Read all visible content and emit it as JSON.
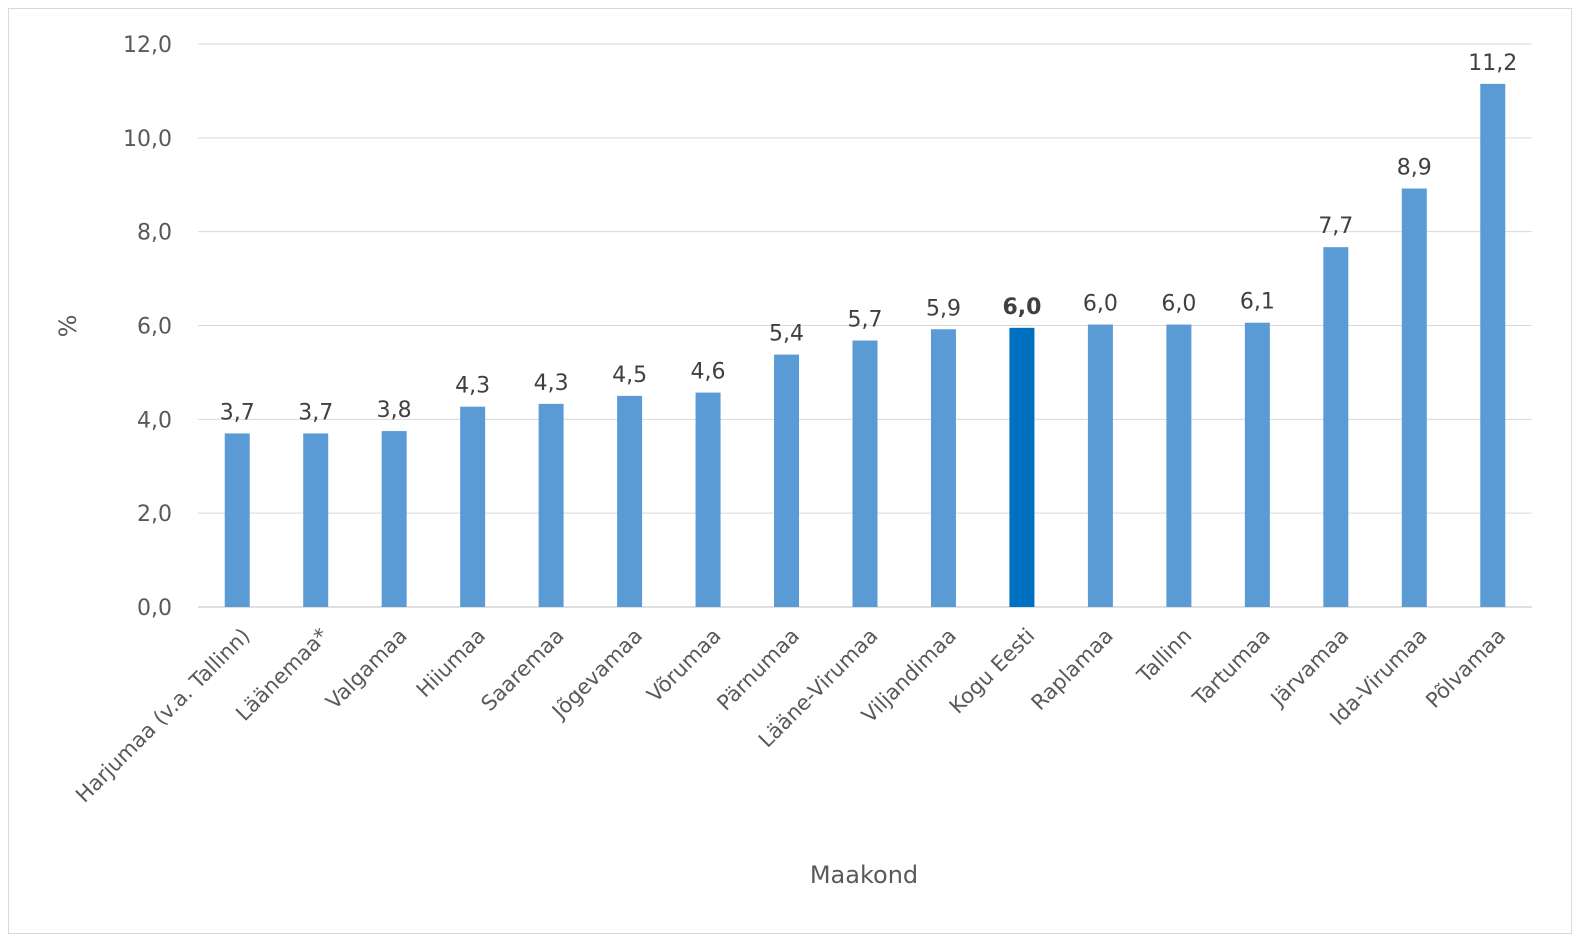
{
  "chart_data": {
    "type": "bar",
    "title": "",
    "xlabel": "Maakond",
    "ylabel": "%",
    "ylim": [
      0,
      12
    ],
    "yticks": [
      "0,0",
      "2,0",
      "4,0",
      "6,0",
      "8,0",
      "10,0",
      "12,0"
    ],
    "grid": true,
    "legend": "none",
    "categories": [
      "Harjumaa (v.a. Tallinn)",
      "Läänemaa*",
      "Valgamaa",
      "Hiiumaa",
      "Saaremaa",
      "Jõgevamaa",
      "Võrumaa",
      "Pärnumaa",
      "Lääne-Virumaa",
      "Viljandimaa",
      "Kogu Eesti",
      "Raplamaa",
      "Tallinn",
      "Tartumaa",
      "Järvamaa",
      "Ida-Virumaa",
      "Põlvamaa"
    ],
    "values": [
      3.7,
      3.7,
      3.75,
      4.27,
      4.33,
      4.5,
      4.57,
      5.38,
      5.68,
      5.92,
      5.95,
      6.02,
      6.02,
      6.06,
      7.67,
      8.92,
      11.15
    ],
    "data_labels": [
      "3,7",
      "3,7",
      "3,8",
      "4,3",
      "4,3",
      "4,5",
      "4,6",
      "5,4",
      "5,7",
      "5,9",
      "6,0",
      "6,0",
      "6,0",
      "6,1",
      "7,7",
      "8,9",
      "11,2"
    ],
    "highlight_category": "Kogu Eesti",
    "colors": {
      "bar": "#5b9bd5",
      "highlight": "#0070c0",
      "grid": "#d9d9d9",
      "axis": "#bfbfbf",
      "text": "#595959"
    }
  }
}
